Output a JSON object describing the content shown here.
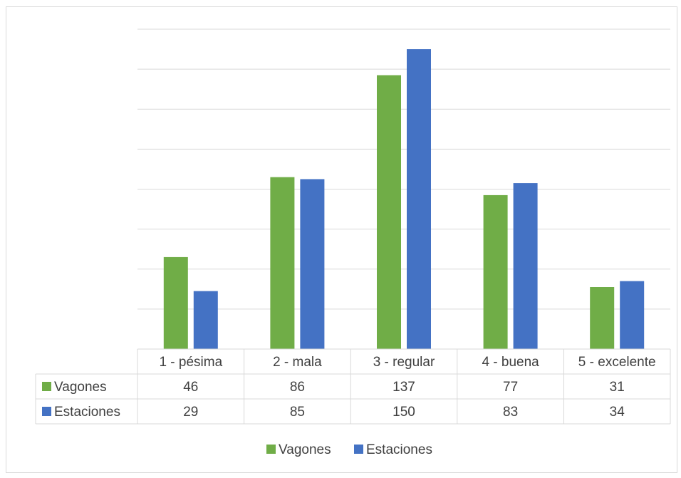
{
  "chart_data": {
    "type": "bar",
    "title": "",
    "xlabel": "",
    "ylabel": "",
    "categories": [
      "1 - pésima",
      "2 - mala",
      "3 - regular",
      "4 - buena",
      "5 - excelente"
    ],
    "series": [
      {
        "name": "Vagones",
        "color": "#70ad47",
        "values": [
          46,
          86,
          137,
          77,
          31
        ]
      },
      {
        "name": "Estaciones",
        "color": "#4472c4",
        "values": [
          29,
          85,
          150,
          83,
          34
        ]
      }
    ],
    "ylim": [
      0,
      160
    ],
    "grid": true,
    "gridlines": 8,
    "data_table": true,
    "legend": "bottom"
  }
}
